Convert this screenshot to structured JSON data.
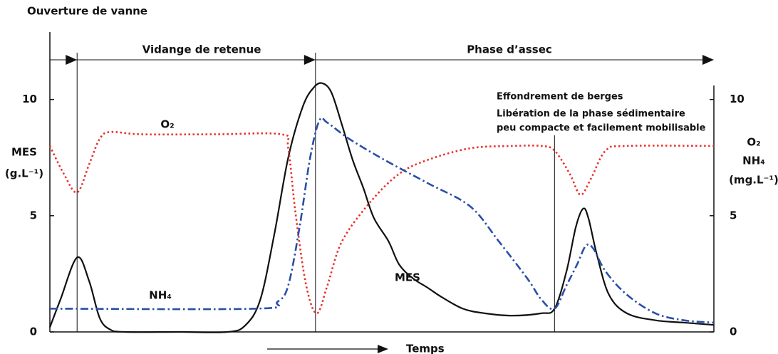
{
  "chart_data": {
    "type": "line",
    "title": "Ouverture de vanne",
    "phases": [
      "Vidange de retenue",
      "Phase d’assec"
    ],
    "annotation": [
      "Effondrement de berges",
      "Libération de la phase sédimentaire",
      "peu compacte et facilement mobilisable"
    ],
    "xlabel": "Temps",
    "ylabel": [
      "MES",
      "(g.L⁻¹)"
    ],
    "y2label": [
      "O₂",
      "NH₄",
      "(mg.L⁻¹)"
    ],
    "events_x": [
      4.1,
      40.0,
      76.0
    ],
    "xlim": [
      0,
      100
    ],
    "ylim": [
      0,
      12.9
    ],
    "yticks": [
      0,
      5,
      10
    ],
    "y2lim": [
      0,
      12.9
    ],
    "y2ticks": [
      0,
      5,
      10
    ],
    "series": [
      {
        "name": "MES",
        "color": "#111111",
        "style": "solid",
        "x": [
          0,
          1.6,
          4.1,
          5.9,
          7.5,
          9.1,
          11.3,
          19.3,
          26.8,
          29.5,
          31.7,
          33.8,
          35.9,
          38.1,
          39.7,
          41.0,
          42.4,
          44.0,
          45.6,
          47.2,
          48.8,
          51.0,
          52.6,
          54.7,
          56.9,
          59.0,
          62.2,
          65.5,
          69.7,
          74.0,
          76.0,
          77.8,
          79.2,
          80.3,
          81.1,
          82.4,
          84.2,
          86.9,
          91.2,
          95.5,
          100
        ],
        "values": [
          0.2,
          1.4,
          3.2,
          2.2,
          0.6,
          0.1,
          0,
          0,
          0,
          0.3,
          1.4,
          4.2,
          7.5,
          9.7,
          10.5,
          10.7,
          10.3,
          8.9,
          7.4,
          6.2,
          4.9,
          3.9,
          2.9,
          2.3,
          1.9,
          1.5,
          1.0,
          0.8,
          0.7,
          0.8,
          1.0,
          2.6,
          4.5,
          5.3,
          4.9,
          3.3,
          1.6,
          0.8,
          0.5,
          0.4,
          0.3
        ]
      },
      {
        "name": "O₂",
        "color": "#e8312a",
        "style": "dotted",
        "axis": "y2",
        "x": [
          0,
          2.1,
          4.1,
          5.9,
          7.5,
          9.1,
          13.9,
          24.7,
          34.9,
          35.9,
          37.0,
          38.6,
          40.2,
          41.8,
          44.0,
          48.3,
          52.6,
          56.9,
          63.3,
          69.7,
          74.0,
          76.0,
          78.3,
          79.9,
          81.5,
          83.7,
          86.9,
          100
        ],
        "values": [
          8.0,
          6.8,
          6.0,
          7.2,
          8.3,
          8.6,
          8.5,
          8.5,
          8.5,
          7.9,
          5.1,
          2.0,
          0.8,
          2.0,
          3.9,
          5.6,
          6.8,
          7.4,
          7.9,
          8.0,
          8.0,
          7.8,
          6.8,
          5.9,
          6.6,
          7.8,
          8.0,
          8.0
        ]
      },
      {
        "name": "NH₄",
        "color": "#2a4fa8",
        "style": "dashdot",
        "axis": "y2",
        "x": [
          0,
          31.1,
          34.3,
          35.9,
          37.6,
          39.2,
          40.6,
          41.8,
          45.1,
          50.4,
          56.9,
          63.3,
          67.6,
          71.9,
          74.0,
          76.0,
          77.8,
          79.4,
          80.7,
          81.8,
          83.7,
          86.9,
          91.2,
          95.5,
          100
        ],
        "values": [
          1.0,
          1.0,
          1.3,
          2.0,
          4.5,
          7.5,
          9.1,
          9.0,
          8.3,
          7.4,
          6.4,
          5.4,
          3.9,
          2.3,
          1.4,
          1.0,
          2.0,
          2.9,
          3.7,
          3.6,
          2.6,
          1.6,
          0.8,
          0.5,
          0.4
        ]
      }
    ]
  }
}
